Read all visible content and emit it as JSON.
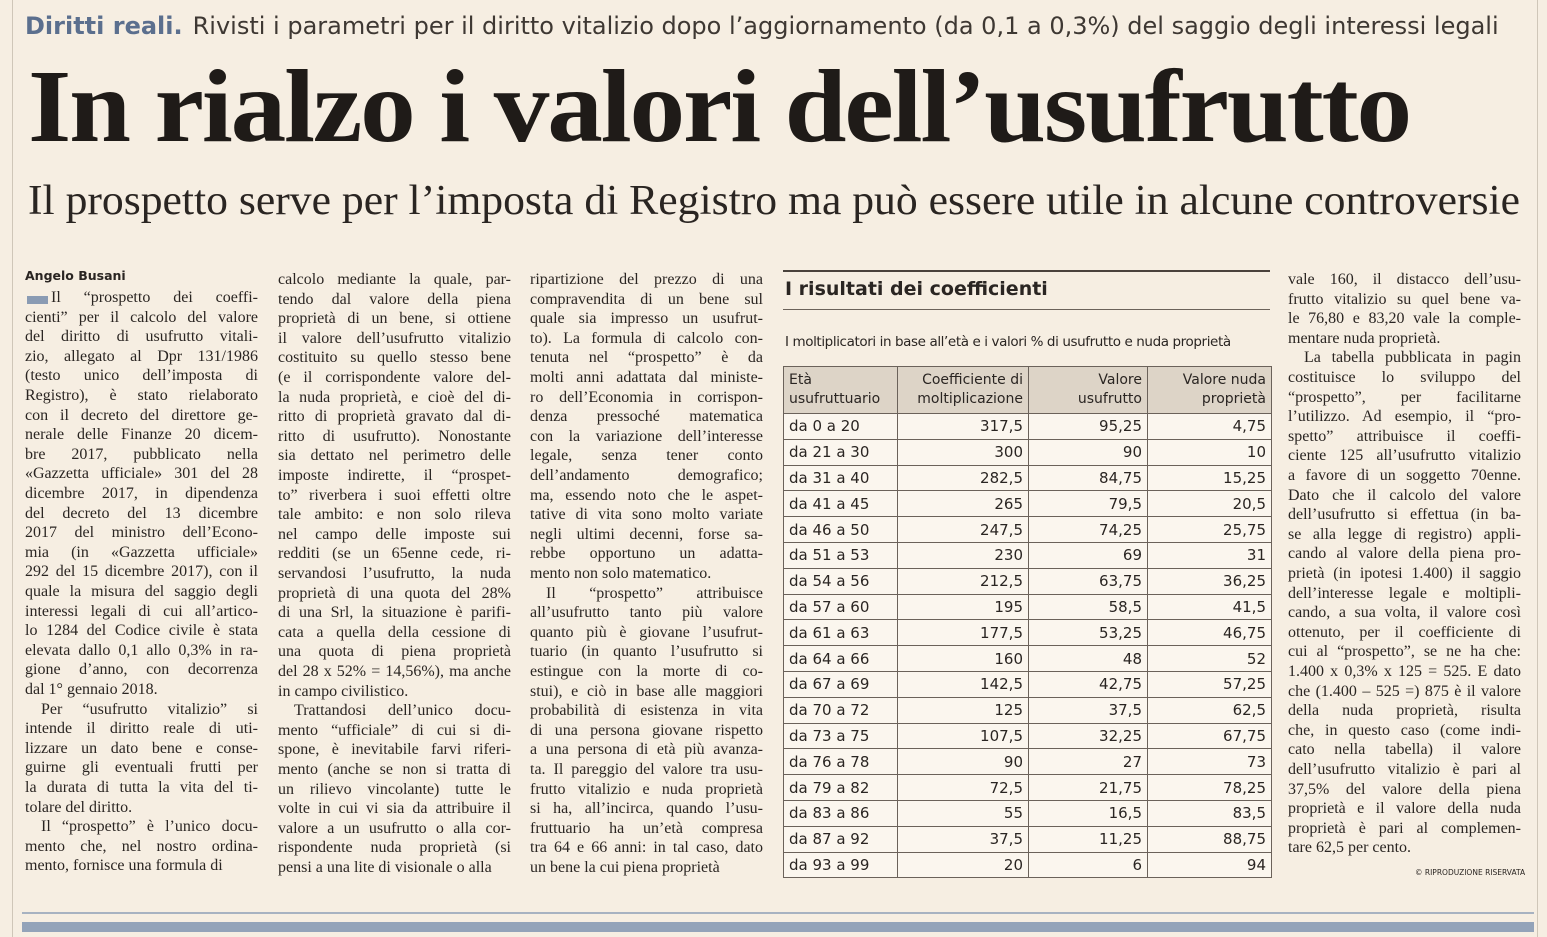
{
  "kicker": {
    "label": "Diritti reali.",
    "text": "Rivisti i parametri per il diritto vitalizio dopo l’aggiornamento (da 0,1 a 0,3%) del saggio degli interessi legali"
  },
  "headline": "In rialzo i valori dell’usufrutto",
  "subheadline": "Il prospetto serve per l’imposta di Registro ma può essere utile in alcune controversie",
  "article": {
    "author": "Angelo Busani",
    "columns": [
      [
        [
          "Il “prospetto dei coeffi-",
          "cienti” per il calcolo del valore",
          "del diritto di usufrutto vitali-",
          "zio, allegato al Dpr 131/1986",
          "(testo unico dell’imposta di",
          "Registro), è stato rielaborato",
          "con il decreto del direttore ge-",
          "nerale delle Finanze 20 dicem-",
          "bre 2017, pubblicato nella",
          "«Gazzetta ufficiale» 301 del 28",
          "dicembre 2017, in dipendenza",
          "del decreto del 13 dicembre",
          "2017 del ministro dell’Econo-",
          "mia (in «Gazzetta ufficiale»",
          "292 del 15 dicembre 2017), con il",
          "quale la misura del saggio degli",
          "interessi legali di cui all’artico-",
          "lo 1284 del Codice civile è stata",
          "elevata dallo 0,1 allo 0,3% in ra-",
          "gione d’anno, con decorrenza",
          "dal 1° gennaio 2018."
        ],
        [
          "Per “usufrutto vitalizio” si",
          "intende il diritto reale di uti-",
          "lizzare un dato bene e conse-",
          "guirne gli eventuali frutti per",
          "la durata di tutta la vita del ti-",
          "tolare del diritto."
        ],
        [
          "Il “prospetto” è l’unico docu-",
          "mento che, nel nostro ordina-",
          "mento, fornisce una formula di"
        ]
      ],
      [
        [
          "calcolo mediante la quale, par-",
          "tendo dal valore della piena",
          "proprietà di un bene, si ottiene",
          "il valore dell’usufrutto vitalizio",
          "costituito su quello stesso bene",
          "(e il corrispondente valore del-",
          "la nuda proprietà, e cioè del di-",
          "ritto di proprietà gravato dal di-",
          "ritto di usufrutto). Nonostante",
          "sia dettato nel perimetro delle",
          "imposte indirette, il “prospet-",
          "to” riverbera i suoi effetti oltre",
          "tale ambito: e non solo rileva",
          "nel campo delle imposte sui",
          "redditi (se un 65enne cede, ri-",
          "servandosi l’usufrutto, la nuda",
          "proprietà di una quota del 28%",
          "di una Srl, la situazione è parifi-",
          "cata a quella della cessione di",
          "una quota di piena proprietà",
          "del 28 x 52% = 14,56%), ma anche",
          "in campo civilistico."
        ],
        [
          "Trattandosi dell’unico docu-",
          "mento “ufficiale” di cui si di-",
          "spone, è inevitabile farvi riferi-",
          "mento (anche se non si tratta di",
          "un rilievo vincolante) tutte le",
          "volte in cui vi sia da attribuire il",
          "valore a un usufrutto o alla cor-",
          "rispondente nuda proprietà (si",
          "pensi a una lite di visionale o alla"
        ]
      ],
      [
        [
          "ripartizione del prezzo di una",
          "compravendita di un bene sul",
          "quale sia impresso un usufrut-",
          "to). La formula di calcolo con-",
          "tenuta nel “prospetto” è da",
          "molti anni adattata dal ministe-",
          "ro dell’Economia in corrispon-",
          "denza pressoché matematica",
          "con la variazione dell’interesse",
          "legale, senza tener conto",
          "dell’andamento demografico;",
          "ma, essendo noto che le aspet-",
          "tative di vita sono molto variate",
          "negli ultimi decenni, forse sa-",
          "rebbe opportuno un adatta-",
          "mento non solo matematico."
        ],
        [
          "Il “prospetto” attribuisce",
          "all’usufrutto tanto più valore",
          "quanto più è giovane l’usufrut-",
          "tuario (in quanto l’usufrutto si",
          "estingue con la morte di co-",
          "stui), e ciò in base alle maggiori",
          "probabilità di esistenza in vita",
          "di una persona giovane rispetto",
          "a una persona di età più avanza-",
          "ta. Il pareggio del valore tra usu-",
          "frutto vitalizio e nuda proprietà",
          "si ha, all’incirca, quando l’usu-",
          "fruttuario ha un’età compresa",
          "tra 64 e 66 anni: in tal caso, dato",
          "un bene la cui piena proprietà"
        ]
      ],
      [
        [
          "vale 160, il distacco dell’usu-",
          "frutto vitalizio su quel bene va-",
          "le 76,80 e 83,20 vale la comple-",
          "mentare nuda proprietà."
        ],
        [
          "La tabella pubblicata in pagin",
          "costituisce lo sviluppo del",
          "“prospetto”, per facilitarne",
          "l’utilizzo. Ad esempio, il “pro-",
          "spetto” attribuisce il coeffi-",
          "ciente 125 all’usufrutto vitalizio",
          "a favore di un soggetto 70enne.",
          "Dato che il calcolo del valore",
          "dell’usufrutto si effettua (in ba-",
          "se alla legge di registro) appli-",
          "cando al valore della piena pro-",
          "prietà (in ipotesi 1.400) il saggio",
          "dell’interesse legale e moltipli-",
          "cando, a sua volta, il valore così",
          "ottenuto, per il coefficiente di",
          "cui al “prospetto”, se ne ha che:",
          "1.400 x 0,3% x 125 = 525. E dato",
          "che (1.400 – 525 =) 875 è il valore",
          "della nuda proprietà, risulta",
          "che, in questo caso (come indi-",
          "cato nella tabella) il valore",
          "dell’usufrutto vitalizio è pari al",
          "37,5% del valore della piena",
          "proprietà e il valore della nuda",
          "proprietà è pari al complemen-",
          "tare 62,5 per cento."
        ]
      ]
    ],
    "copyright": "© RIPRODUZIONE RISERVATA"
  },
  "table": {
    "title": "I risultati dei coefficienti",
    "subtitle": "I moltiplicatori in base all’età e i valori % di usufrutto e nuda proprietà",
    "header": [
      [
        "Età",
        "usufruttuario"
      ],
      [
        "Coefficiente di",
        "moltiplicazione"
      ],
      [
        "Valore",
        "usufrutto"
      ],
      [
        "Valore nuda",
        "proprietà"
      ]
    ],
    "rows": [
      [
        "da 0 a 20",
        "317,5",
        "95,25",
        "4,75"
      ],
      [
        "da 21 a 30",
        "300",
        "90",
        "10"
      ],
      [
        "da 31 a 40",
        "282,5",
        "84,75",
        "15,25"
      ],
      [
        "da 41 a 45",
        "265",
        "79,5",
        "20,5"
      ],
      [
        "da 46 a 50",
        "247,5",
        "74,25",
        "25,75"
      ],
      [
        "da 51 a 53",
        "230",
        "69",
        "31"
      ],
      [
        "da 54 a 56",
        "212,5",
        "63,75",
        "36,25"
      ],
      [
        "da 57 a 60",
        "195",
        "58,5",
        "41,5"
      ],
      [
        "da 61 a 63",
        "177,5",
        "53,25",
        "46,75"
      ],
      [
        "da 64 a 66",
        "160",
        "48",
        "52"
      ],
      [
        "da 67 a 69",
        "142,5",
        "42,75",
        "57,25"
      ],
      [
        "da 70 a 72",
        "125",
        "37,5",
        "62,5"
      ],
      [
        "da 73 a 75",
        "107,5",
        "32,25",
        "67,75"
      ],
      [
        "da 76 a 78",
        "90",
        "27",
        "73"
      ],
      [
        "da 79 a 82",
        "72,5",
        "21,75",
        "78,25"
      ],
      [
        "da 83 a 86",
        "55",
        "16,5",
        "83,5"
      ],
      [
        "da 87 a 92",
        "37,5",
        "11,25",
        "88,75"
      ],
      [
        "da 93 a 99",
        "20",
        "6",
        "94"
      ]
    ]
  }
}
